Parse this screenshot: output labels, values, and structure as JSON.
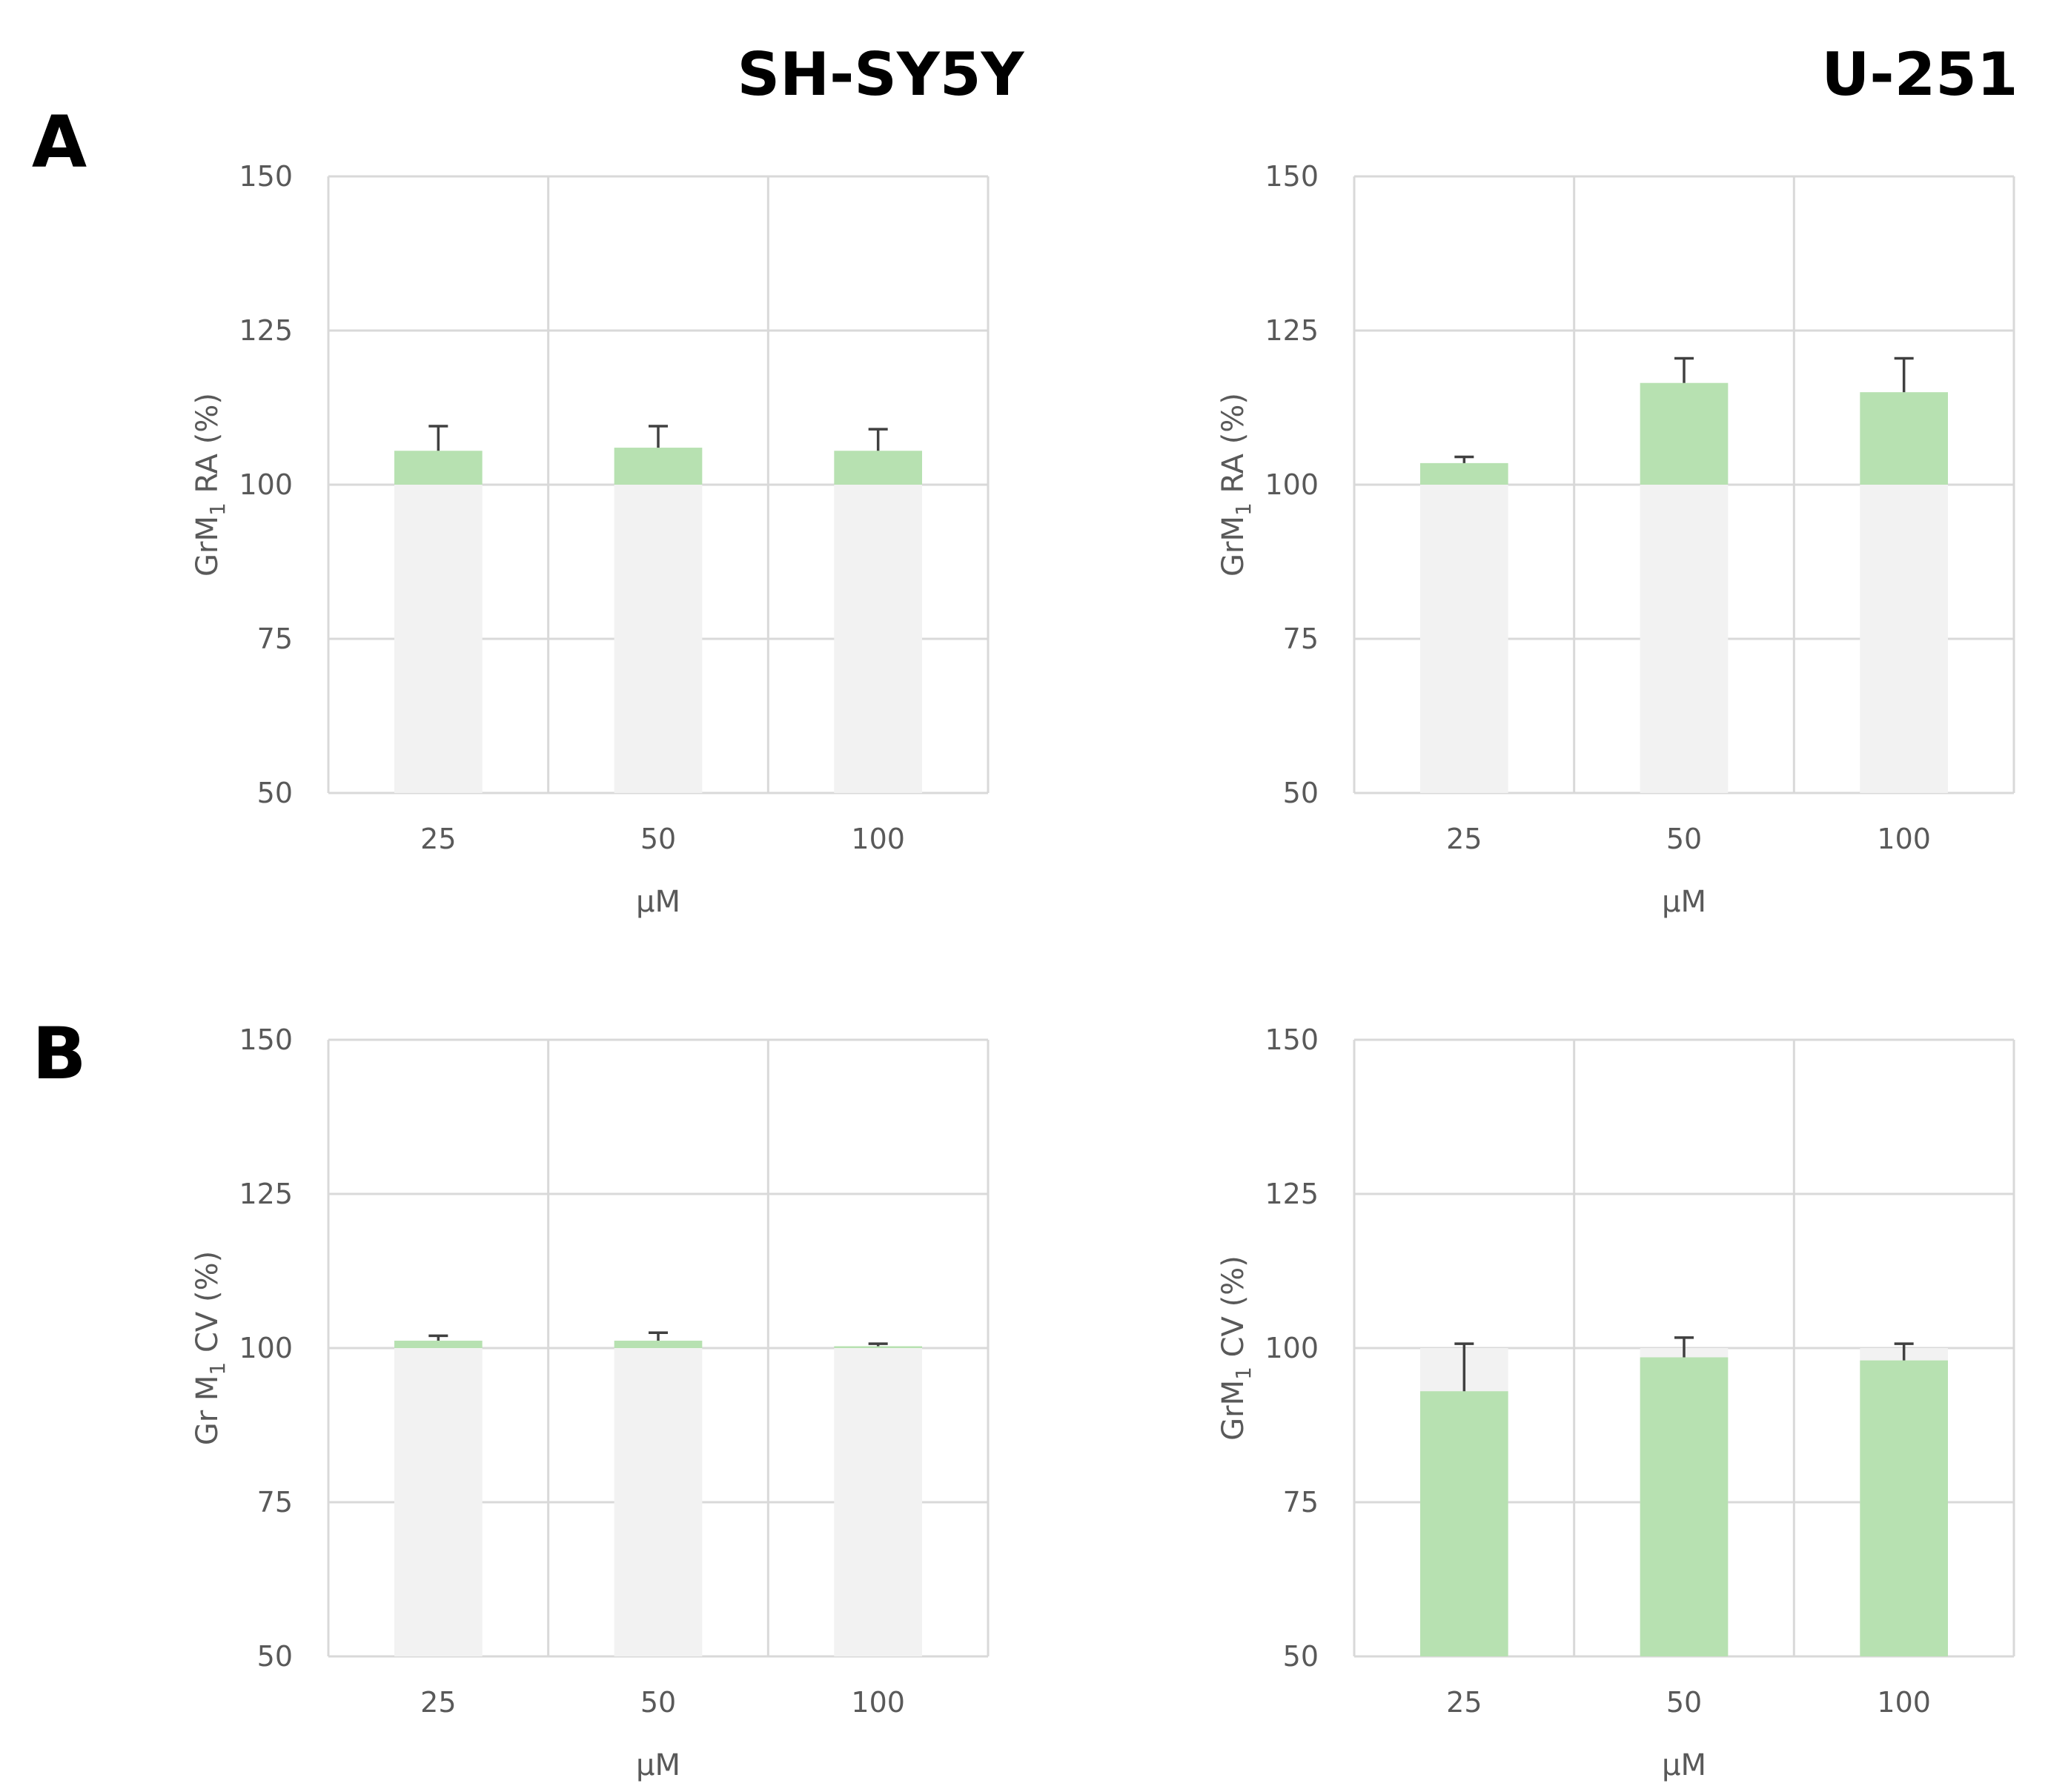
{
  "column_titles": {
    "left": "SH-SY5Y",
    "right": "U-251"
  },
  "panel_letters": {
    "top": "A",
    "bottom": "B"
  },
  "colors": {
    "baseline_bar": "#f2f2f2",
    "effect_bar": "#b7e1b1",
    "grid": "#d9d9d9",
    "error_bar": "#404040",
    "text": "#595959"
  },
  "chart_data": [
    {
      "type": "bar",
      "panel": "A",
      "cell_line": "SH-SY5Y",
      "categories": [
        "25",
        "50",
        "100"
      ],
      "baseline": 100,
      "values": [
        105.5,
        106,
        105.5
      ],
      "error_upper": [
        109.5,
        109.5,
        109
      ],
      "ylim": [
        50,
        150
      ],
      "yticks": [
        50,
        75,
        100,
        125,
        150
      ],
      "xlabel": "µM",
      "ylabel_main": "GrM",
      "ylabel_sub": "1",
      "ylabel_rest": " RA (%)",
      "grid": true
    },
    {
      "type": "bar",
      "panel": "A",
      "cell_line": "U-251",
      "categories": [
        "25",
        "50",
        "100"
      ],
      "baseline": 100,
      "values": [
        103.5,
        116.5,
        115
      ],
      "error_upper": [
        104.5,
        120.5,
        120.5
      ],
      "ylim": [
        50,
        150
      ],
      "yticks": [
        50,
        75,
        100,
        125,
        150
      ],
      "xlabel": "µM",
      "ylabel_main": "GrM",
      "ylabel_sub": "1",
      "ylabel_rest": " RA (%)",
      "grid": true
    },
    {
      "type": "bar",
      "panel": "B",
      "cell_line": "SH-SY5Y",
      "categories": [
        "25",
        "50",
        "100"
      ],
      "baseline": 100,
      "values": [
        101.2,
        101.2,
        100.3
      ],
      "error_upper": [
        102,
        102.5,
        100.7
      ],
      "ylim": [
        50,
        150
      ],
      "yticks": [
        50,
        75,
        100,
        125,
        150
      ],
      "xlabel": "µM",
      "ylabel_main": "Gr M",
      "ylabel_sub": "1",
      "ylabel_rest": " CV (%)",
      "grid": true
    },
    {
      "type": "bar",
      "panel": "B",
      "cell_line": "U-251",
      "categories": [
        "25",
        "50",
        "100"
      ],
      "baseline": 100,
      "values": [
        93,
        98.5,
        98
      ],
      "error_upper": [
        100.7,
        101.7,
        100.7
      ],
      "ylim": [
        50,
        150
      ],
      "yticks": [
        50,
        75,
        100,
        125,
        150
      ],
      "xlabel": "µM",
      "ylabel_main": "GrM",
      "ylabel_sub": "1",
      "ylabel_rest": " CV (%)",
      "grid": true
    }
  ]
}
